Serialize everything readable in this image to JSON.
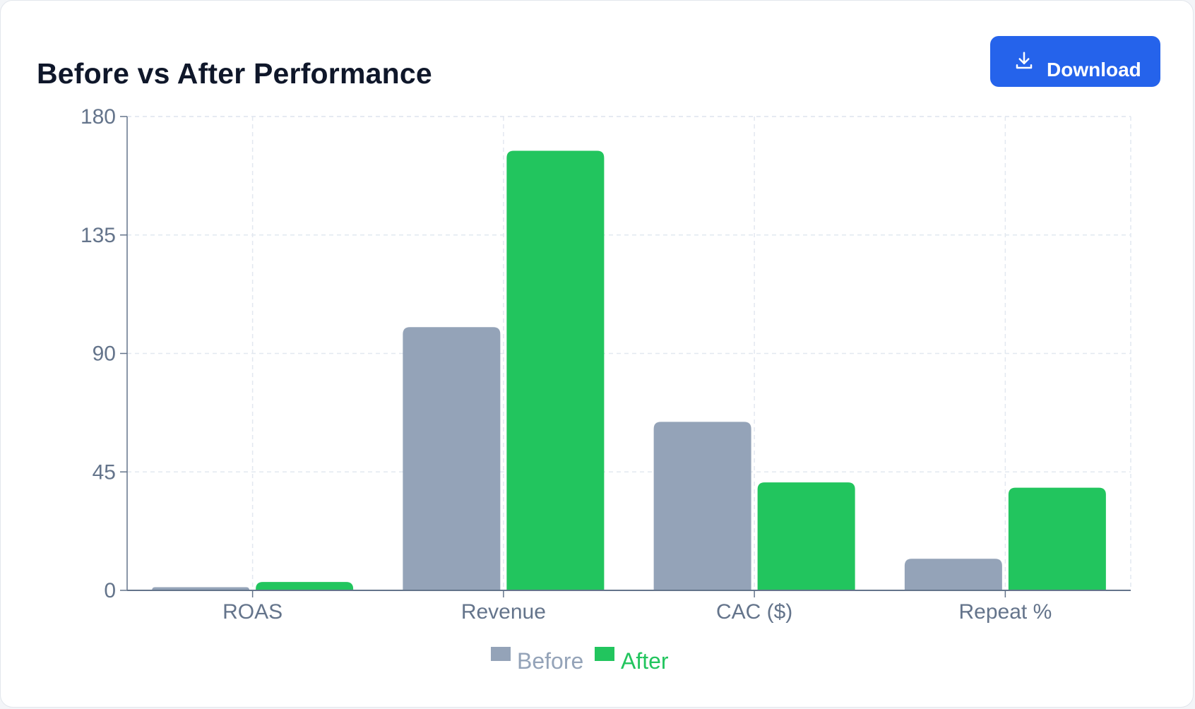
{
  "header": {
    "title": "Before vs After Performance",
    "download_label": "Download",
    "download_icon": "download-icon"
  },
  "colors": {
    "before": "#94a3b8",
    "after": "#22c55e",
    "button": "#2563eb",
    "grid": "#e2e8f0",
    "axis": "#64748b"
  },
  "chart_data": {
    "type": "bar",
    "categories": [
      "ROAS",
      "Revenue",
      "CAC ($)",
      "Repeat %"
    ],
    "series": [
      {
        "name": "Before",
        "values": [
          1.2,
          100,
          64,
          12
        ]
      },
      {
        "name": "After",
        "values": [
          3.2,
          167,
          41,
          39
        ]
      }
    ],
    "ylim": [
      0,
      180
    ],
    "yticks": [
      0,
      45,
      90,
      135,
      180
    ],
    "grid": true,
    "legend_position": "bottom"
  }
}
